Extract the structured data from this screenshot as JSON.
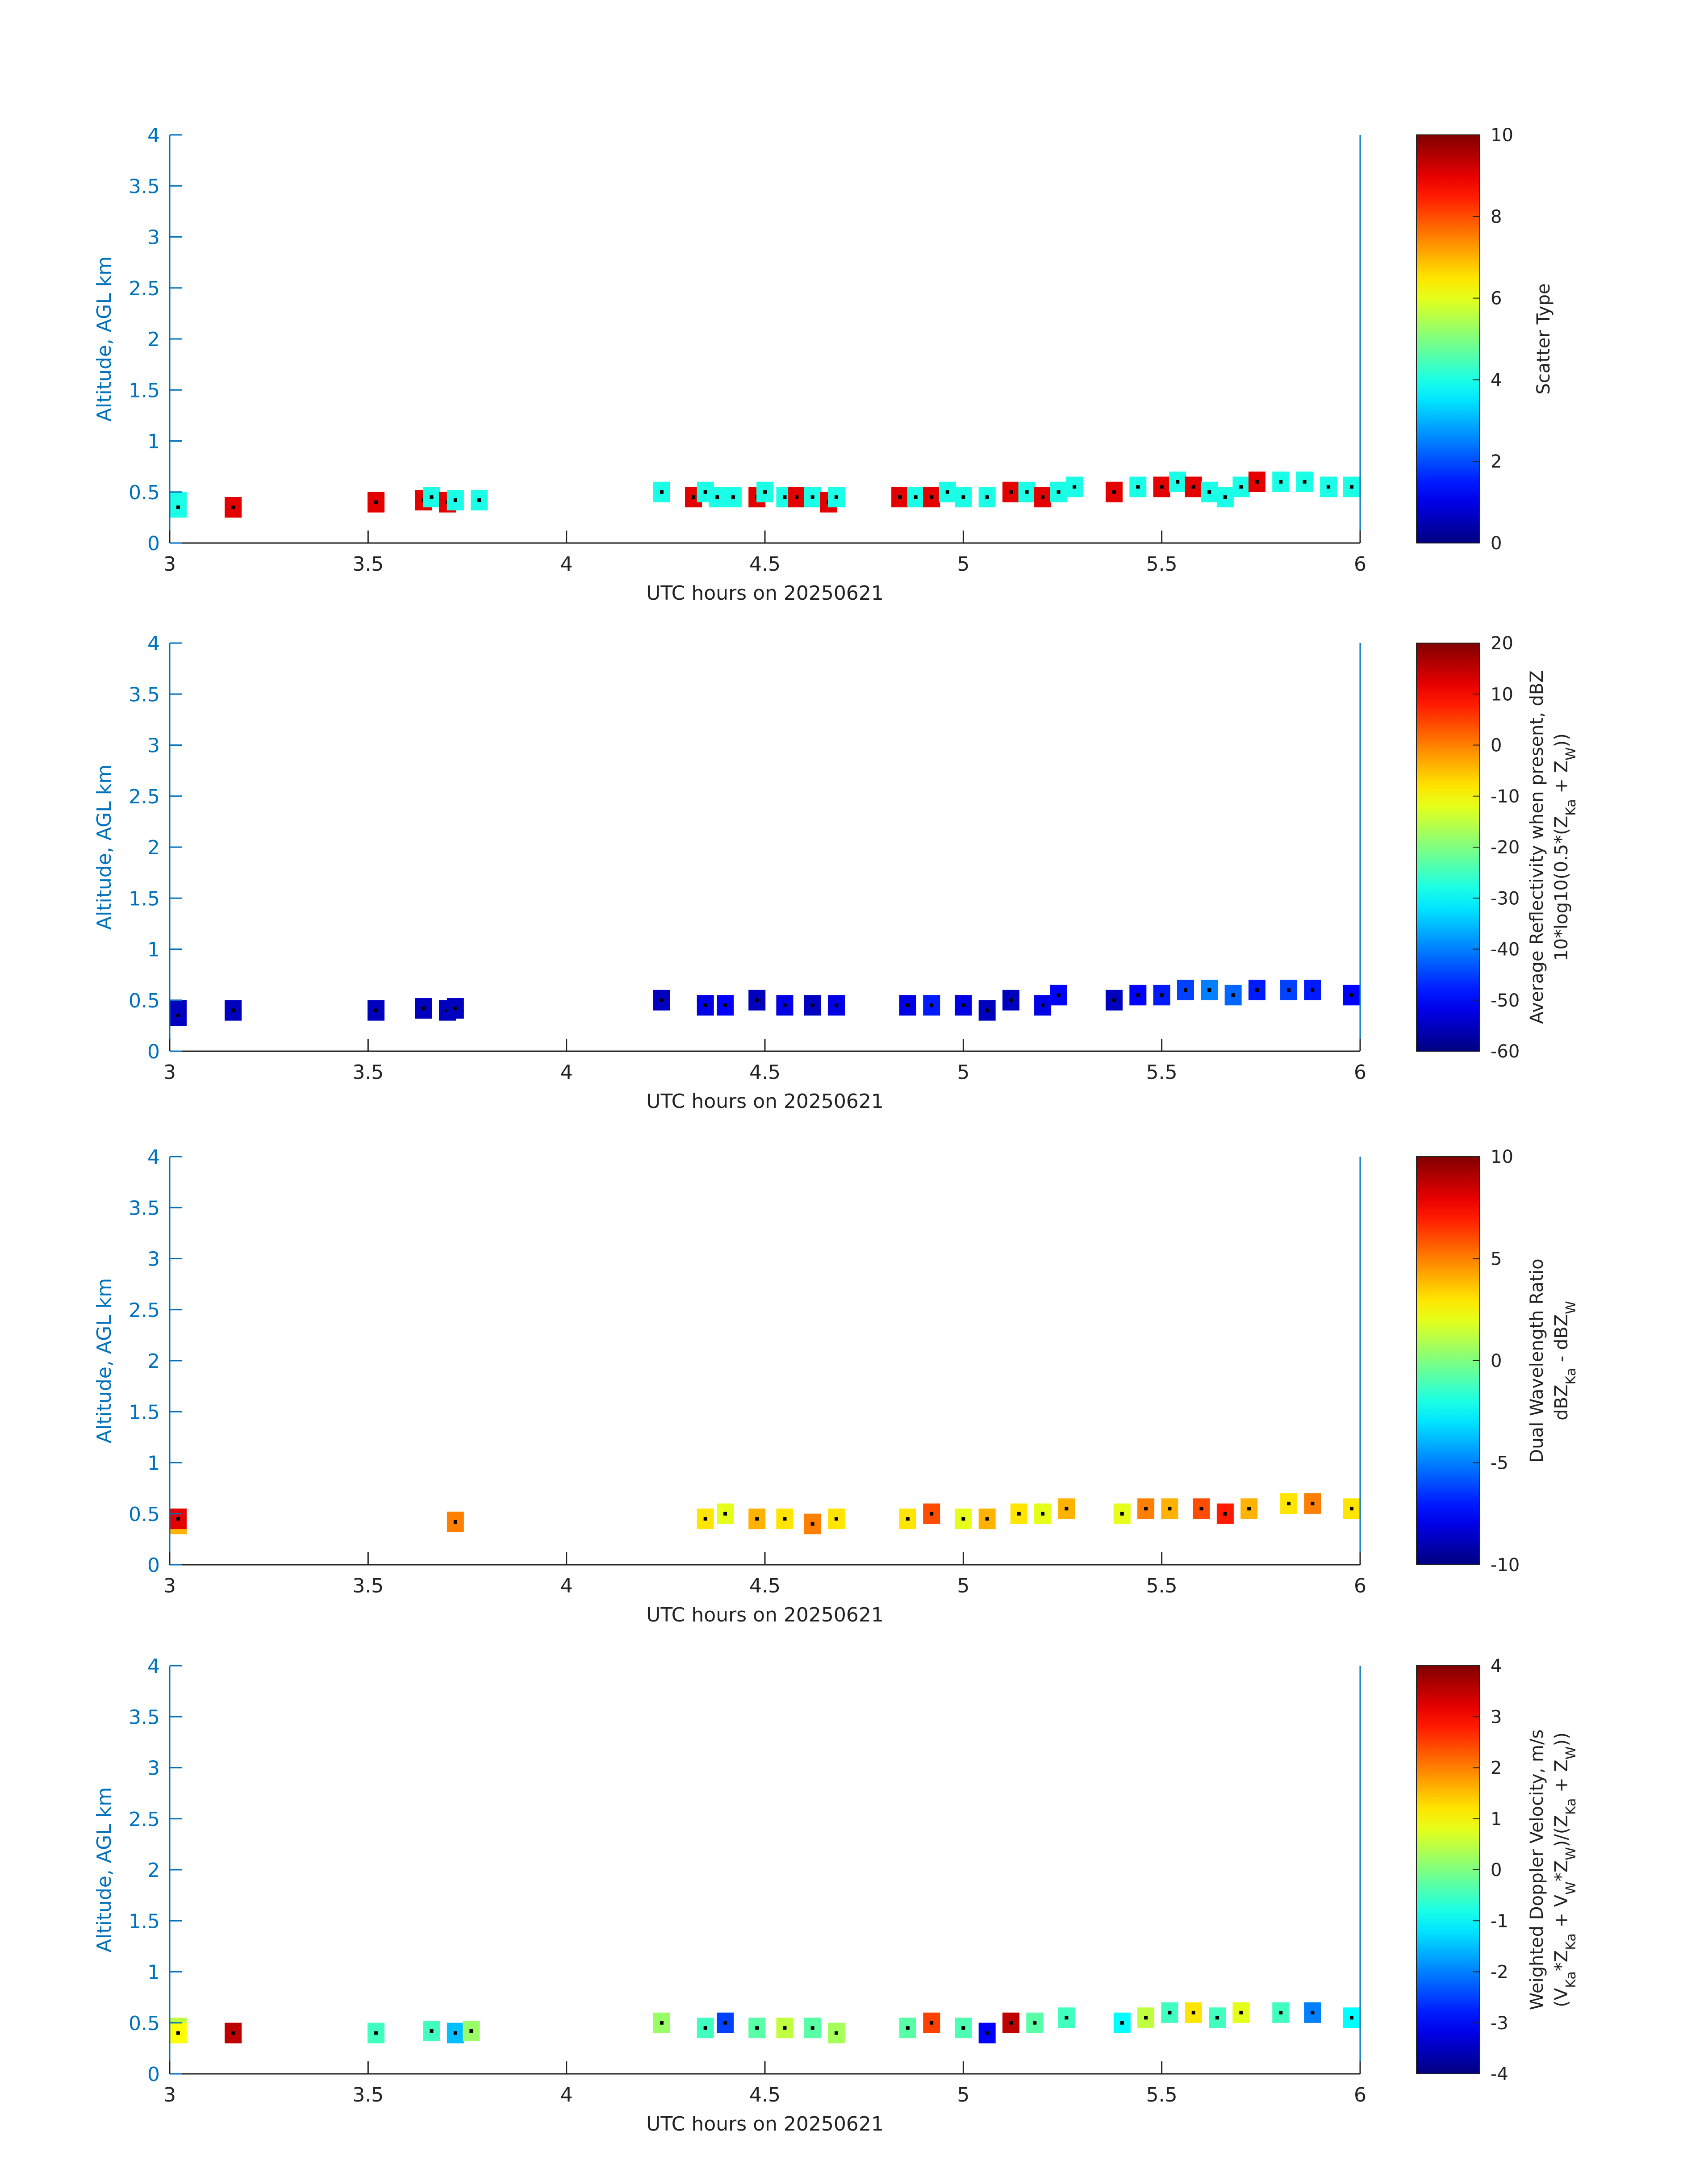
{
  "chart_data": [
    {
      "type": "heatmap",
      "xlabel": "UTC hours on 20250621",
      "ylabel": "Altitude, AGL km",
      "xlim": [
        3,
        6
      ],
      "ylim": [
        0,
        4
      ],
      "xticks": [
        "3",
        "3.5",
        "4",
        "4.5",
        "5",
        "5.5",
        "6"
      ],
      "yticks": [
        "0",
        "0.5",
        "1",
        "1.5",
        "2",
        "2.5",
        "3",
        "3.5",
        "4"
      ],
      "colorbar": {
        "label_lines": [
          "Scatter Type"
        ],
        "min": 0,
        "max": 10,
        "ticks": [
          "0",
          "2",
          "4",
          "6",
          "8",
          "10"
        ]
      },
      "pixels": [
        {
          "t": 3.0,
          "h": 0.4,
          "v": 4
        },
        {
          "t": 3.02,
          "h": 0.35,
          "v": 4
        },
        {
          "t": 3.16,
          "h": 0.35,
          "v": 9
        },
        {
          "t": 3.52,
          "h": 0.4,
          "v": 9
        },
        {
          "t": 3.64,
          "h": 0.42,
          "v": 9
        },
        {
          "t": 3.66,
          "h": 0.45,
          "v": 4
        },
        {
          "t": 3.7,
          "h": 0.4,
          "v": 9
        },
        {
          "t": 3.72,
          "h": 0.42,
          "v": 4
        },
        {
          "t": 3.78,
          "h": 0.42,
          "v": 4
        },
        {
          "t": 4.24,
          "h": 0.5,
          "v": 4
        },
        {
          "t": 4.32,
          "h": 0.45,
          "v": 9
        },
        {
          "t": 4.35,
          "h": 0.5,
          "v": 4
        },
        {
          "t": 4.38,
          "h": 0.45,
          "v": 4
        },
        {
          "t": 4.42,
          "h": 0.45,
          "v": 4
        },
        {
          "t": 4.48,
          "h": 0.45,
          "v": 9
        },
        {
          "t": 4.5,
          "h": 0.5,
          "v": 4
        },
        {
          "t": 4.55,
          "h": 0.45,
          "v": 4
        },
        {
          "t": 4.58,
          "h": 0.45,
          "v": 9
        },
        {
          "t": 4.62,
          "h": 0.45,
          "v": 4
        },
        {
          "t": 4.66,
          "h": 0.4,
          "v": 9
        },
        {
          "t": 4.68,
          "h": 0.45,
          "v": 4
        },
        {
          "t": 4.84,
          "h": 0.45,
          "v": 9
        },
        {
          "t": 4.88,
          "h": 0.45,
          "v": 4
        },
        {
          "t": 4.92,
          "h": 0.45,
          "v": 9
        },
        {
          "t": 4.96,
          "h": 0.5,
          "v": 4
        },
        {
          "t": 5.0,
          "h": 0.45,
          "v": 4
        },
        {
          "t": 5.06,
          "h": 0.45,
          "v": 4
        },
        {
          "t": 5.12,
          "h": 0.5,
          "v": 9
        },
        {
          "t": 5.16,
          "h": 0.5,
          "v": 4
        },
        {
          "t": 5.2,
          "h": 0.45,
          "v": 9
        },
        {
          "t": 5.24,
          "h": 0.5,
          "v": 4
        },
        {
          "t": 5.28,
          "h": 0.55,
          "v": 4
        },
        {
          "t": 5.38,
          "h": 0.5,
          "v": 9
        },
        {
          "t": 5.44,
          "h": 0.55,
          "v": 4
        },
        {
          "t": 5.5,
          "h": 0.55,
          "v": 9
        },
        {
          "t": 5.54,
          "h": 0.6,
          "v": 4
        },
        {
          "t": 5.58,
          "h": 0.55,
          "v": 9
        },
        {
          "t": 5.62,
          "h": 0.5,
          "v": 4
        },
        {
          "t": 5.66,
          "h": 0.45,
          "v": 4
        },
        {
          "t": 5.7,
          "h": 0.55,
          "v": 4
        },
        {
          "t": 5.74,
          "h": 0.6,
          "v": 9
        },
        {
          "t": 5.8,
          "h": 0.6,
          "v": 4
        },
        {
          "t": 5.86,
          "h": 0.6,
          "v": 4
        },
        {
          "t": 5.92,
          "h": 0.55,
          "v": 4
        },
        {
          "t": 6.0,
          "h": 0.55,
          "v": 4
        }
      ]
    },
    {
      "type": "heatmap",
      "xlabel": "UTC hours on 20250621",
      "ylabel": "Altitude, AGL km",
      "xlim": [
        3,
        6
      ],
      "ylim": [
        0,
        4
      ],
      "xticks": [
        "3",
        "3.5",
        "4",
        "4.5",
        "5",
        "5.5",
        "6"
      ],
      "yticks": [
        "0",
        "0.5",
        "1",
        "1.5",
        "2",
        "2.5",
        "3",
        "3.5",
        "4"
      ],
      "colorbar": {
        "label_lines": [
          "Average Reflectivity when present, dBZ",
          "10*log10(0.5*(Zₖₐ + Zᵥᵥ))"
        ],
        "label_line1": "Average Reflectivity when present, dBZ",
        "label_line2_main": "10*log10(0.5*(Z",
        "label_line2_sub1": "Ka",
        "label_line2_mid": " + Z",
        "label_line2_sub2": "W",
        "label_line2_end": "))",
        "min": -60,
        "max": 20,
        "ticks": [
          "-60",
          "-50",
          "-40",
          "-30",
          "-20",
          "-10",
          "0",
          "10",
          "20"
        ]
      },
      "pixels": [
        {
          "t": 3.0,
          "h": 0.4,
          "v": -55
        },
        {
          "t": 3.02,
          "h": 0.35,
          "v": -55
        },
        {
          "t": 3.16,
          "h": 0.4,
          "v": -55
        },
        {
          "t": 3.52,
          "h": 0.4,
          "v": -55
        },
        {
          "t": 3.64,
          "h": 0.42,
          "v": -55
        },
        {
          "t": 3.7,
          "h": 0.4,
          "v": -55
        },
        {
          "t": 3.72,
          "h": 0.42,
          "v": -55
        },
        {
          "t": 4.24,
          "h": 0.5,
          "v": -55
        },
        {
          "t": 4.35,
          "h": 0.45,
          "v": -52
        },
        {
          "t": 4.4,
          "h": 0.45,
          "v": -50
        },
        {
          "t": 4.48,
          "h": 0.5,
          "v": -55
        },
        {
          "t": 4.55,
          "h": 0.45,
          "v": -52
        },
        {
          "t": 4.62,
          "h": 0.45,
          "v": -55
        },
        {
          "t": 4.68,
          "h": 0.45,
          "v": -52
        },
        {
          "t": 4.86,
          "h": 0.45,
          "v": -52
        },
        {
          "t": 4.92,
          "h": 0.45,
          "v": -48
        },
        {
          "t": 5.0,
          "h": 0.45,
          "v": -52
        },
        {
          "t": 5.06,
          "h": 0.4,
          "v": -55
        },
        {
          "t": 5.12,
          "h": 0.5,
          "v": -55
        },
        {
          "t": 5.2,
          "h": 0.45,
          "v": -52
        },
        {
          "t": 5.24,
          "h": 0.55,
          "v": -50
        },
        {
          "t": 5.38,
          "h": 0.5,
          "v": -55
        },
        {
          "t": 5.44,
          "h": 0.55,
          "v": -50
        },
        {
          "t": 5.5,
          "h": 0.55,
          "v": -48
        },
        {
          "t": 5.56,
          "h": 0.6,
          "v": -45
        },
        {
          "t": 5.62,
          "h": 0.6,
          "v": -40
        },
        {
          "t": 5.68,
          "h": 0.55,
          "v": -42
        },
        {
          "t": 5.74,
          "h": 0.6,
          "v": -48
        },
        {
          "t": 5.82,
          "h": 0.6,
          "v": -45
        },
        {
          "t": 5.88,
          "h": 0.6,
          "v": -48
        },
        {
          "t": 6.0,
          "h": 0.55,
          "v": -50
        }
      ]
    },
    {
      "type": "heatmap",
      "xlabel": "UTC hours on 20250621",
      "ylabel": "Altitude, AGL km",
      "xlim": [
        3,
        6
      ],
      "ylim": [
        0,
        4
      ],
      "xticks": [
        "3",
        "3.5",
        "4",
        "4.5",
        "5",
        "5.5",
        "6"
      ],
      "yticks": [
        "0",
        "0.5",
        "1",
        "1.5",
        "2",
        "2.5",
        "3",
        "3.5",
        "4"
      ],
      "colorbar": {
        "label_line1": "Dual Wavelength Ratio",
        "label_line2_main": "dBZ",
        "label_line2_sub1": "Ka",
        "label_line2_mid": " - dBZ",
        "label_line2_sub2": "W",
        "min": -10,
        "max": 10,
        "ticks": [
          "-10",
          "-5",
          "0",
          "5",
          "10"
        ]
      },
      "pixels": [
        {
          "t": 3.0,
          "h": 0.4,
          "v": 4
        },
        {
          "t": 3.02,
          "h": 0.45,
          "v": 8
        },
        {
          "t": 3.72,
          "h": 0.42,
          "v": 5
        },
        {
          "t": 4.35,
          "h": 0.45,
          "v": 3
        },
        {
          "t": 4.4,
          "h": 0.5,
          "v": 2
        },
        {
          "t": 4.48,
          "h": 0.45,
          "v": 4
        },
        {
          "t": 4.55,
          "h": 0.45,
          "v": 3
        },
        {
          "t": 4.62,
          "h": 0.4,
          "v": 5
        },
        {
          "t": 4.68,
          "h": 0.45,
          "v": 3
        },
        {
          "t": 4.86,
          "h": 0.45,
          "v": 3
        },
        {
          "t": 4.92,
          "h": 0.5,
          "v": 6
        },
        {
          "t": 5.0,
          "h": 0.45,
          "v": 2
        },
        {
          "t": 5.06,
          "h": 0.45,
          "v": 4
        },
        {
          "t": 5.14,
          "h": 0.5,
          "v": 3
        },
        {
          "t": 5.2,
          "h": 0.5,
          "v": 2
        },
        {
          "t": 5.26,
          "h": 0.55,
          "v": 4
        },
        {
          "t": 5.4,
          "h": 0.5,
          "v": 2
        },
        {
          "t": 5.46,
          "h": 0.55,
          "v": 5
        },
        {
          "t": 5.52,
          "h": 0.55,
          "v": 4
        },
        {
          "t": 5.6,
          "h": 0.55,
          "v": 6
        },
        {
          "t": 5.66,
          "h": 0.5,
          "v": 7
        },
        {
          "t": 5.72,
          "h": 0.55,
          "v": 4
        },
        {
          "t": 5.82,
          "h": 0.6,
          "v": 3
        },
        {
          "t": 5.88,
          "h": 0.6,
          "v": 5
        },
        {
          "t": 6.0,
          "h": 0.55,
          "v": 3
        }
      ]
    },
    {
      "type": "heatmap",
      "xlabel": "UTC hours on 20250621",
      "ylabel": "Altitude, AGL km",
      "xlim": [
        3,
        6
      ],
      "ylim": [
        0,
        4
      ],
      "xticks": [
        "3",
        "3.5",
        "4",
        "4.5",
        "5",
        "5.5",
        "6"
      ],
      "yticks": [
        "0",
        "0.5",
        "1",
        "1.5",
        "2",
        "2.5",
        "3",
        "3.5",
        "4"
      ],
      "colorbar": {
        "label_line1": "Weighted Doppler Velocity, m/s",
        "label_line2_main": "(V",
        "label_line2_sub1": "Ka",
        "label_line2_mid": "*Z",
        "label_line2_sub2": "Ka",
        "label_line2_end": " + V",
        "label_line2_sub3": "W",
        "label_line2_mid2": "*Z",
        "label_line2_sub4": "W",
        "label_line2_mid3": ")/(Z",
        "label_line2_sub5": "Ka",
        "label_line2_mid4": " + Z",
        "label_line2_sub6": "W",
        "label_line2_close": "))",
        "min": -4,
        "max": 4,
        "ticks": [
          "-4",
          "-3",
          "-2",
          "-1",
          "0",
          "1",
          "2",
          "3",
          "4"
        ]
      },
      "pixels": [
        {
          "t": 3.0,
          "h": 0.45,
          "v": 0.5
        },
        {
          "t": 3.02,
          "h": 0.4,
          "v": 1
        },
        {
          "t": 3.16,
          "h": 0.4,
          "v": 3.5
        },
        {
          "t": 3.52,
          "h": 0.4,
          "v": -0.5
        },
        {
          "t": 3.66,
          "h": 0.42,
          "v": -0.5
        },
        {
          "t": 3.72,
          "h": 0.4,
          "v": -1.5
        },
        {
          "t": 3.76,
          "h": 0.42,
          "v": 0.2
        },
        {
          "t": 4.24,
          "h": 0.5,
          "v": 0.2
        },
        {
          "t": 4.35,
          "h": 0.45,
          "v": -0.5
        },
        {
          "t": 4.4,
          "h": 0.5,
          "v": -2.5
        },
        {
          "t": 4.48,
          "h": 0.45,
          "v": -0.3
        },
        {
          "t": 4.55,
          "h": 0.45,
          "v": 0.5
        },
        {
          "t": 4.62,
          "h": 0.45,
          "v": -0.3
        },
        {
          "t": 4.68,
          "h": 0.4,
          "v": 0.3
        },
        {
          "t": 4.86,
          "h": 0.45,
          "v": -0.3
        },
        {
          "t": 4.92,
          "h": 0.5,
          "v": 2.5
        },
        {
          "t": 5.0,
          "h": 0.45,
          "v": -0.4
        },
        {
          "t": 5.06,
          "h": 0.4,
          "v": -3
        },
        {
          "t": 5.12,
          "h": 0.5,
          "v": 3.5
        },
        {
          "t": 5.18,
          "h": 0.5,
          "v": -0.3
        },
        {
          "t": 5.26,
          "h": 0.55,
          "v": -0.5
        },
        {
          "t": 5.4,
          "h": 0.5,
          "v": -1
        },
        {
          "t": 5.46,
          "h": 0.55,
          "v": 0.5
        },
        {
          "t": 5.52,
          "h": 0.6,
          "v": -0.5
        },
        {
          "t": 5.58,
          "h": 0.6,
          "v": 1.2
        },
        {
          "t": 5.64,
          "h": 0.55,
          "v": -0.5
        },
        {
          "t": 5.7,
          "h": 0.6,
          "v": 0.8
        },
        {
          "t": 5.8,
          "h": 0.6,
          "v": -0.5
        },
        {
          "t": 5.88,
          "h": 0.6,
          "v": -2
        },
        {
          "t": 6.0,
          "h": 0.55,
          "v": -1
        }
      ]
    }
  ]
}
